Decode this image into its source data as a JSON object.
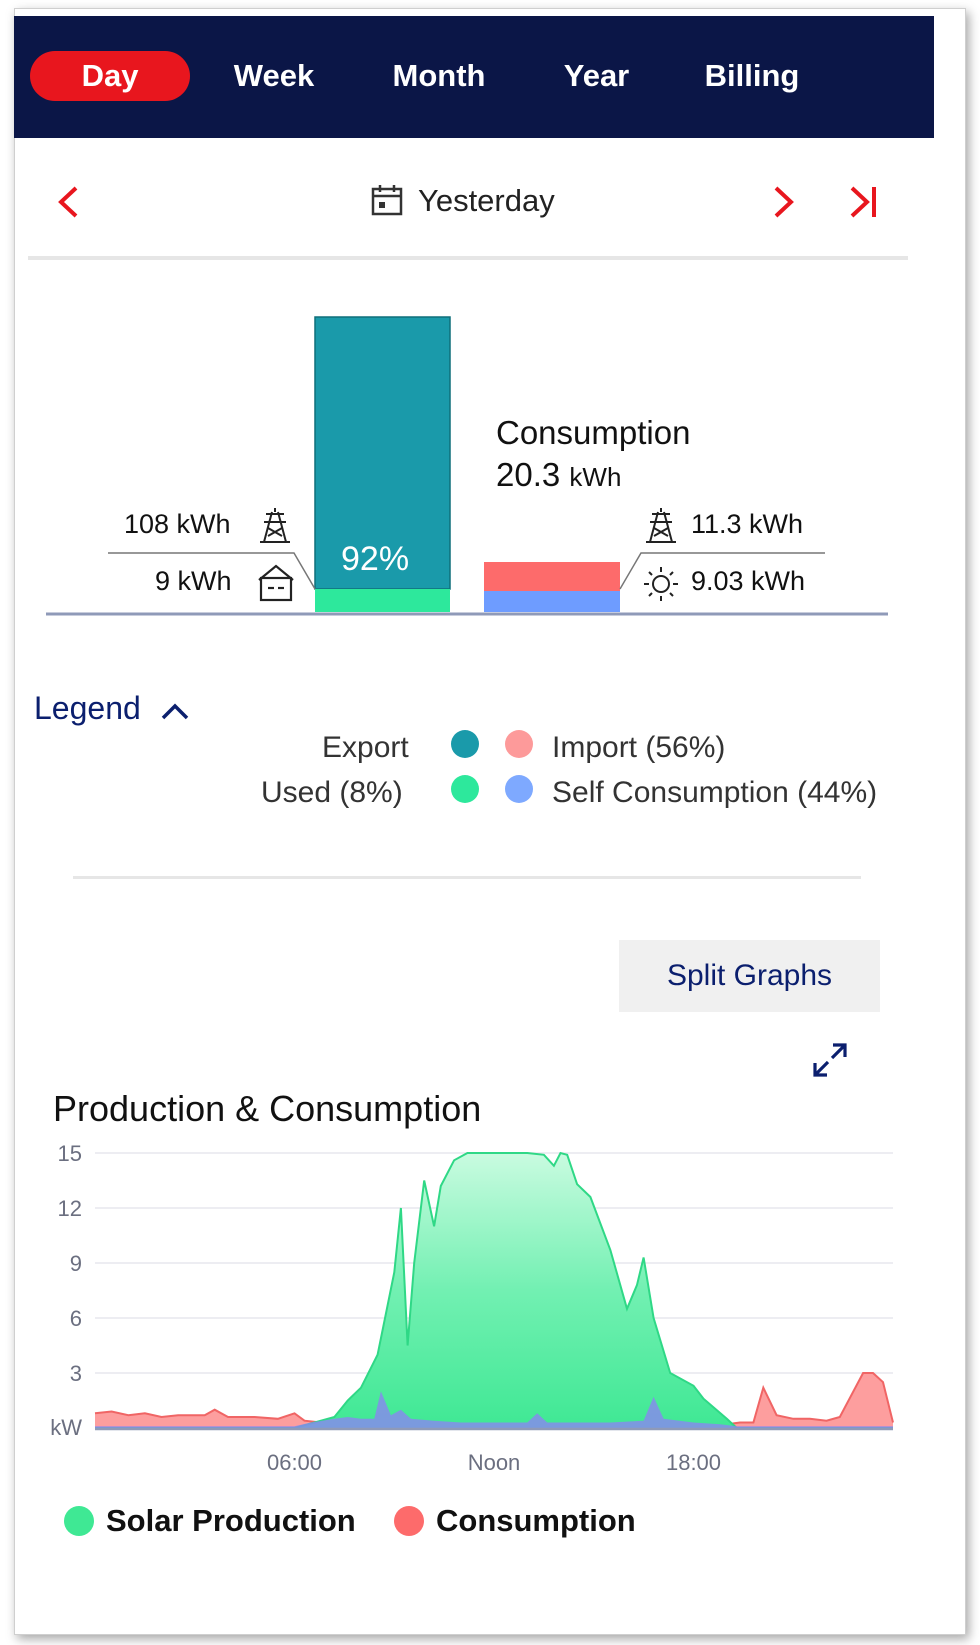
{
  "tabs": [
    "Day",
    "Week",
    "Month",
    "Year",
    "Billing"
  ],
  "active_tab": "Day",
  "date_nav": {
    "label": "Yesterday"
  },
  "summary": {
    "production_bar_percent": "92%",
    "left_top_value": "108 kWh",
    "left_bottom_value": "9 kWh",
    "consumption_title": "Consumption",
    "consumption_value": "20.3",
    "consumption_unit": "kWh",
    "right_top_value": "11.3 kWh",
    "right_bottom_value": "9.03 kWh"
  },
  "legend": {
    "title": "Legend",
    "items": [
      {
        "label": "Export",
        "color": "#1a9aaa"
      },
      {
        "label": "Import (56%)",
        "color": "#fd6b6b"
      },
      {
        "label": "Used (8%)",
        "color": "#2de89c"
      },
      {
        "label": "Self Consumption (44%)",
        "color": "#6e9cff"
      }
    ]
  },
  "split_button": "Split Graphs",
  "chart_title": "Production & Consumption",
  "chart_data": {
    "type": "area",
    "ylabel": "kW",
    "yticks": [
      15,
      12,
      9,
      6,
      3
    ],
    "ylim": [
      0,
      15
    ],
    "xlim": [
      0,
      24
    ],
    "xticks": [
      {
        "label": "06:00",
        "x": 6
      },
      {
        "label": "Noon",
        "x": 12
      },
      {
        "label": "18:00",
        "x": 18
      }
    ],
    "series": [
      {
        "name": "Solar Production",
        "color": "#3fe894",
        "points": [
          [
            0,
            0
          ],
          [
            6,
            0
          ],
          [
            6.4,
            0.2
          ],
          [
            7.2,
            0.6
          ],
          [
            7.6,
            1.5
          ],
          [
            8,
            2.2
          ],
          [
            8.5,
            4
          ],
          [
            9,
            8.5
          ],
          [
            9.2,
            12
          ],
          [
            9.4,
            4.5
          ],
          [
            9.6,
            9
          ],
          [
            9.9,
            13.5
          ],
          [
            10.2,
            11
          ],
          [
            10.4,
            13.2
          ],
          [
            10.8,
            14.6
          ],
          [
            11.2,
            15
          ],
          [
            12,
            15
          ],
          [
            13,
            15
          ],
          [
            13.5,
            14.9
          ],
          [
            13.8,
            14.3
          ],
          [
            14,
            15
          ],
          [
            14.2,
            14.9
          ],
          [
            14.5,
            13.3
          ],
          [
            14.9,
            12.6
          ],
          [
            15.5,
            9.7
          ],
          [
            16,
            6.5
          ],
          [
            16.3,
            7.8
          ],
          [
            16.5,
            9.3
          ],
          [
            16.8,
            6
          ],
          [
            17.3,
            3
          ],
          [
            18,
            2.3
          ],
          [
            18.3,
            1.6
          ],
          [
            19,
            0.5
          ],
          [
            19.3,
            0
          ],
          [
            24,
            0
          ]
        ]
      },
      {
        "name": "Consumption",
        "color": "#fd6b6b",
        "points": [
          [
            0,
            0.8
          ],
          [
            0.5,
            0.9
          ],
          [
            1,
            0.7
          ],
          [
            1.5,
            0.8
          ],
          [
            2,
            0.6
          ],
          [
            2.5,
            0.7
          ],
          [
            3.3,
            0.7
          ],
          [
            3.6,
            1.0
          ],
          [
            4,
            0.6
          ],
          [
            4.8,
            0.6
          ],
          [
            5.5,
            0.5
          ],
          [
            6,
            0.8
          ],
          [
            6.3,
            0.4
          ],
          [
            6.8,
            0.3
          ],
          [
            7.3,
            0.4
          ],
          [
            8,
            0.4
          ],
          [
            8.4,
            0.5
          ],
          [
            8.8,
            0.3
          ],
          [
            9.5,
            0.3
          ],
          [
            10.5,
            0.3
          ],
          [
            11.5,
            0.3
          ],
          [
            12.5,
            0.3
          ],
          [
            13.5,
            0.3
          ],
          [
            14,
            0.4
          ],
          [
            15,
            0.3
          ],
          [
            16,
            0.2
          ],
          [
            17,
            0.2
          ],
          [
            18,
            0.2
          ],
          [
            18.5,
            0.2
          ],
          [
            19,
            0.2
          ],
          [
            19.4,
            0.3
          ],
          [
            19.8,
            0.3
          ],
          [
            20.1,
            2.2
          ],
          [
            20.5,
            0.7
          ],
          [
            21,
            0.5
          ],
          [
            21.5,
            0.5
          ],
          [
            22,
            0.4
          ],
          [
            22.4,
            0.6
          ],
          [
            23.1,
            3.0
          ],
          [
            23.4,
            3.0
          ],
          [
            23.7,
            2.5
          ],
          [
            24,
            0.3
          ]
        ]
      },
      {
        "name": "Self Consumption",
        "color": "#8a86f0",
        "points": [
          [
            0,
            0.1
          ],
          [
            6,
            0.1
          ],
          [
            6.5,
            0.3
          ],
          [
            7.2,
            0.5
          ],
          [
            7.6,
            0.6
          ],
          [
            8,
            0.5
          ],
          [
            8.4,
            0.5
          ],
          [
            8.6,
            2.0
          ],
          [
            8.9,
            0.7
          ],
          [
            9.2,
            1.0
          ],
          [
            9.5,
            0.5
          ],
          [
            10.2,
            0.4
          ],
          [
            11,
            0.3
          ],
          [
            12,
            0.3
          ],
          [
            13,
            0.3
          ],
          [
            13.3,
            0.8
          ],
          [
            13.6,
            0.3
          ],
          [
            14.5,
            0.3
          ],
          [
            15.5,
            0.3
          ],
          [
            16.5,
            0.4
          ],
          [
            16.8,
            1.7
          ],
          [
            17.1,
            0.5
          ],
          [
            18,
            0.3
          ],
          [
            18.8,
            0.2
          ],
          [
            19.3,
            0.1
          ],
          [
            24,
            0.1
          ]
        ]
      }
    ]
  },
  "bottom_legend": [
    "Solar Production",
    "Consumption"
  ]
}
